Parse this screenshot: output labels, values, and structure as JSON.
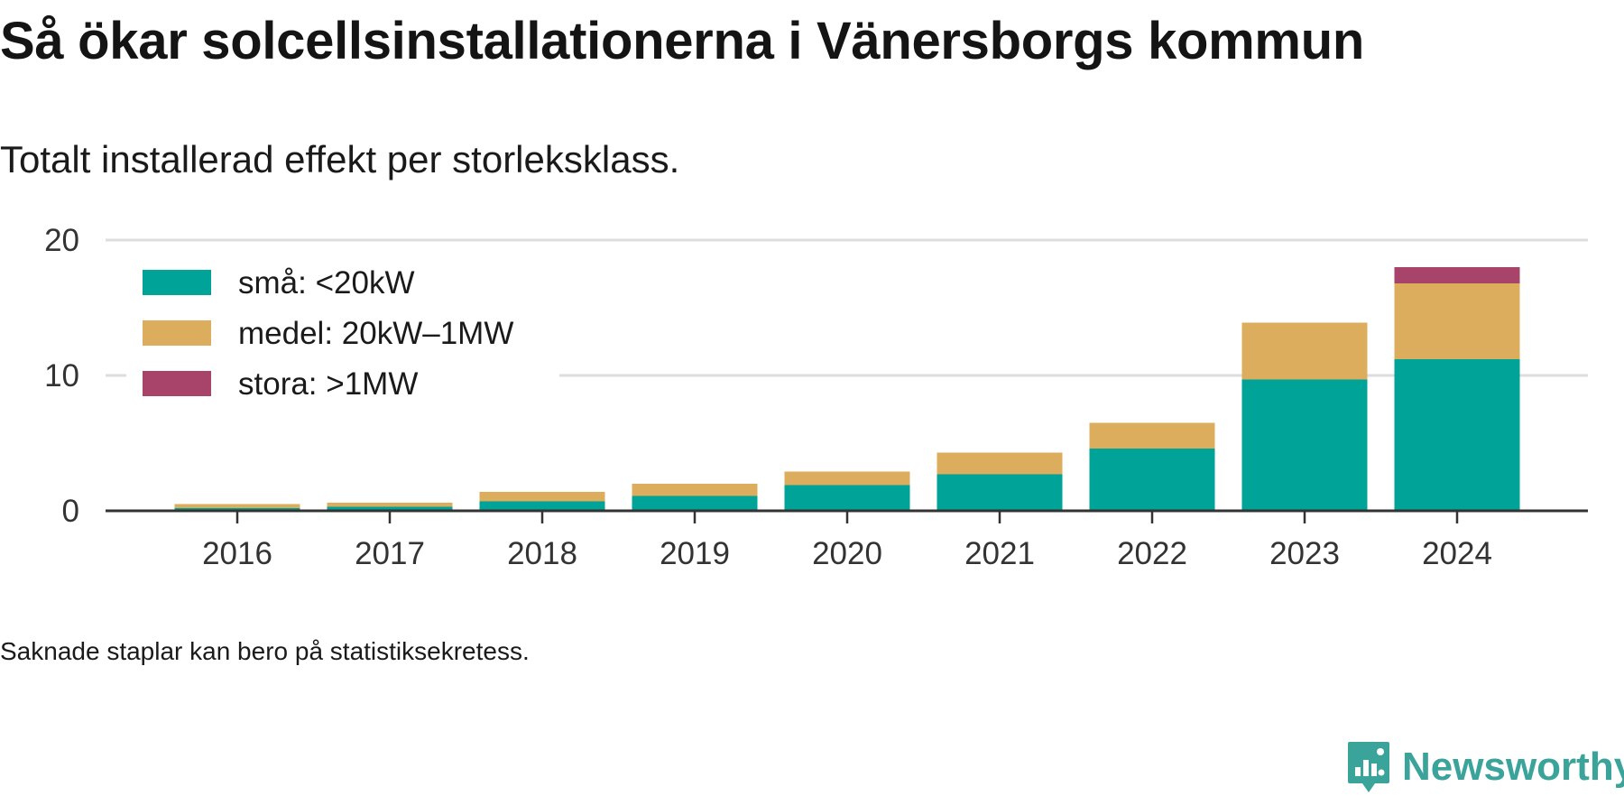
{
  "title": "Så ökar solcellsinstallationerna i Vänersborgs kommun",
  "subtitle": "Totalt installerad effekt per storleksklass.",
  "footnote": "Saknade staplar kan bero på statistiksekretess.",
  "brand": {
    "name": "Newsworthy",
    "icon": "newsworthy-logo-icon",
    "color": "#3aa39a"
  },
  "chart_data": {
    "type": "bar",
    "stacked": true,
    "categories": [
      "2016",
      "2017",
      "2018",
      "2019",
      "2020",
      "2021",
      "2022",
      "2023",
      "2024"
    ],
    "series": [
      {
        "name": "små: <20kW",
        "color": "#00a398",
        "values": [
          0.2,
          0.3,
          0.7,
          1.1,
          1.9,
          2.7,
          4.6,
          9.7,
          11.2
        ]
      },
      {
        "name": "medel: 20kW–1MW",
        "color": "#dcad5c",
        "values": [
          0.3,
          0.3,
          0.7,
          0.9,
          1.0,
          1.6,
          1.9,
          4.2,
          5.6
        ]
      },
      {
        "name": "stora: >1MW",
        "color": "#a8436a",
        "values": [
          0,
          0,
          0,
          0,
          0,
          0,
          0,
          0,
          1.2
        ]
      }
    ],
    "ylim": [
      0,
      20
    ],
    "yticks": [
      "0",
      "10",
      "20"
    ],
    "ytick_values": [
      0,
      10,
      20
    ],
    "grid": true,
    "legend_position": "top-left",
    "xlabel": "",
    "ylabel": ""
  }
}
